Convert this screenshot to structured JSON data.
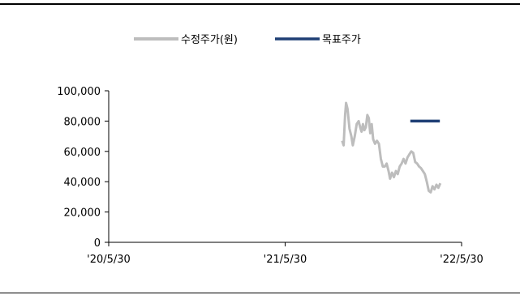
{
  "chart_data": {
    "type": "line",
    "title": "",
    "xlabel": "",
    "ylabel": "",
    "x_tick_labels": [
      "'20/5/30",
      "'21/5/30",
      "'22/5/30"
    ],
    "x_range": [
      "2020-05-30",
      "2022-05-30"
    ],
    "y_tick_labels": [
      "100,000",
      "80,000",
      "60,000",
      "40,000",
      "20,000",
      "0"
    ],
    "ylim": [
      0,
      100000
    ],
    "legend_position": "top-center",
    "grid": false,
    "series": [
      {
        "name": "수정주가(원)",
        "color": "#bdbdbd",
        "points": [
          [
            "2021-09-25",
            67000
          ],
          [
            "2021-09-28",
            64000
          ],
          [
            "2021-10-01",
            84000
          ],
          [
            "2021-10-03",
            92000
          ],
          [
            "2021-10-06",
            88000
          ],
          [
            "2021-10-10",
            75000
          ],
          [
            "2021-10-14",
            70000
          ],
          [
            "2021-10-17",
            64000
          ],
          [
            "2021-10-21",
            70000
          ],
          [
            "2021-10-25",
            78000
          ],
          [
            "2021-10-29",
            80000
          ],
          [
            "2021-11-01",
            76000
          ],
          [
            "2021-11-04",
            73000
          ],
          [
            "2021-11-07",
            78000
          ],
          [
            "2021-11-10",
            74000
          ],
          [
            "2021-11-13",
            76000
          ],
          [
            "2021-11-16",
            84000
          ],
          [
            "2021-11-19",
            82000
          ],
          [
            "2021-11-22",
            72000
          ],
          [
            "2021-11-25",
            78000
          ],
          [
            "2021-11-28",
            68000
          ],
          [
            "2021-12-02",
            65000
          ],
          [
            "2021-12-06",
            67000
          ],
          [
            "2021-12-10",
            65000
          ],
          [
            "2021-12-14",
            55000
          ],
          [
            "2021-12-18",
            50000
          ],
          [
            "2021-12-22",
            50000
          ],
          [
            "2021-12-26",
            52000
          ],
          [
            "2021-12-30",
            47000
          ],
          [
            "2022-01-02",
            42000
          ],
          [
            "2022-01-06",
            46000
          ],
          [
            "2022-01-10",
            43000
          ],
          [
            "2022-01-14",
            47000
          ],
          [
            "2022-01-18",
            45000
          ],
          [
            "2022-01-22",
            50000
          ],
          [
            "2022-01-26",
            52000
          ],
          [
            "2022-01-30",
            55000
          ],
          [
            "2022-02-03",
            52000
          ],
          [
            "2022-02-07",
            56000
          ],
          [
            "2022-02-11",
            58000
          ],
          [
            "2022-02-15",
            60000
          ],
          [
            "2022-02-19",
            59000
          ],
          [
            "2022-02-23",
            53000
          ],
          [
            "2022-02-27",
            52000
          ],
          [
            "2022-03-03",
            50000
          ],
          [
            "2022-03-07",
            49000
          ],
          [
            "2022-03-11",
            47000
          ],
          [
            "2022-03-15",
            45000
          ],
          [
            "2022-03-19",
            40000
          ],
          [
            "2022-03-23",
            34000
          ],
          [
            "2022-03-27",
            33000
          ],
          [
            "2022-03-31",
            37000
          ],
          [
            "2022-04-04",
            35000
          ],
          [
            "2022-04-08",
            38000
          ],
          [
            "2022-04-12",
            36000
          ],
          [
            "2022-04-16",
            39000
          ]
        ]
      },
      {
        "name": "목표주가",
        "color": "#1f3f75",
        "points": [
          [
            "2022-02-13",
            80000
          ],
          [
            "2022-04-15",
            80000
          ]
        ]
      }
    ]
  }
}
